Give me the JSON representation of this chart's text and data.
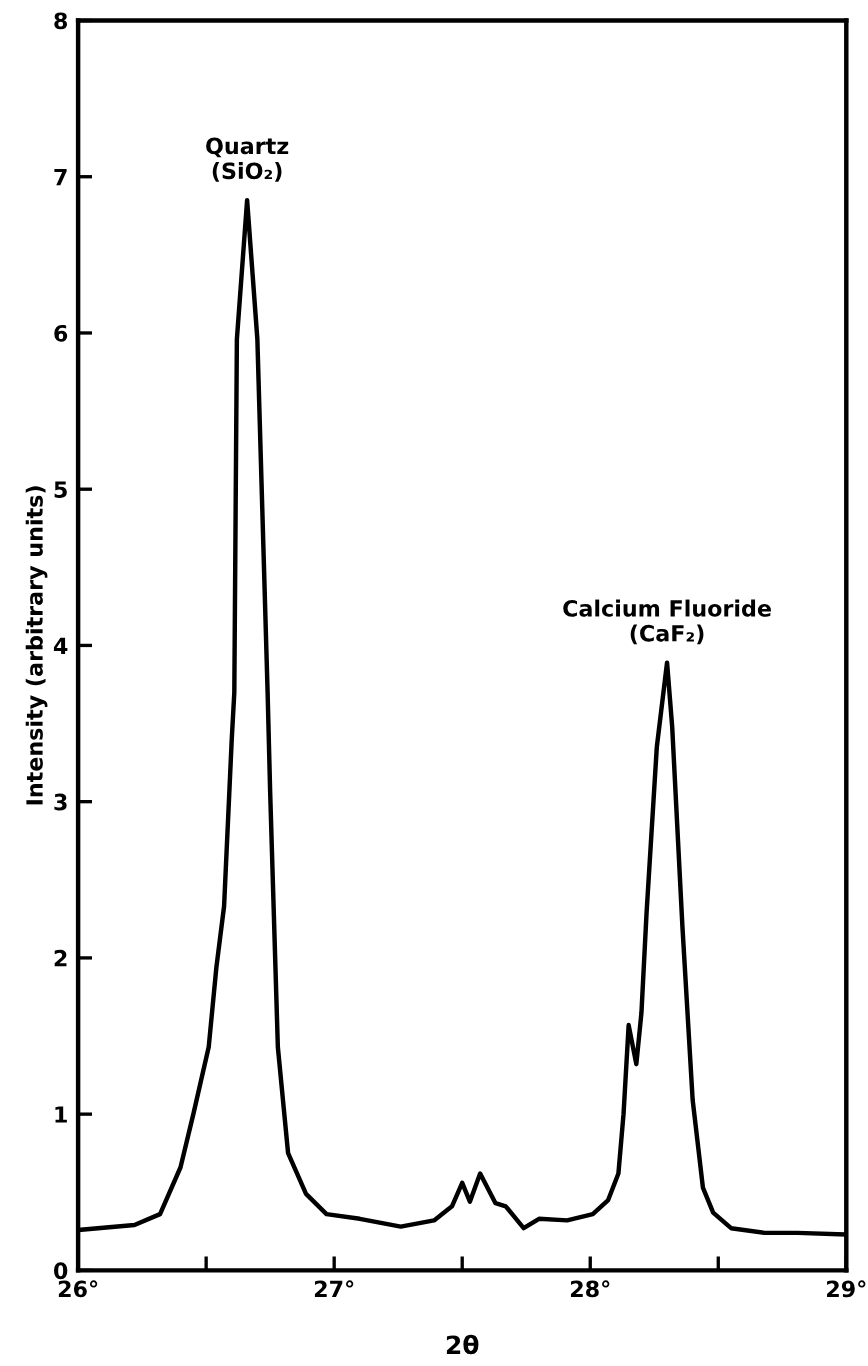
{
  "chart_data": {
    "type": "line",
    "xlabel": "2θ",
    "ylabel": "Intensity (arbitrary units)",
    "annotations": [
      {
        "text": "Quartz\n(SiO₂)",
        "x": 26.66,
        "y": 6.85
      },
      {
        "text": "Calcium Fluoride\n(CaF₂)",
        "x": 28.3,
        "y": 3.89
      }
    ],
    "series": [
      {
        "color": "#000000",
        "x": [
          26.01,
          26.22,
          26.32,
          26.4,
          26.45,
          26.51,
          26.54,
          26.57,
          26.6,
          26.61,
          26.62,
          26.66,
          26.7,
          26.74,
          26.75,
          26.78,
          26.82,
          26.89,
          26.97,
          27.1,
          27.26,
          27.39,
          27.46,
          27.5,
          27.53,
          27.57,
          27.63,
          27.67,
          27.74,
          27.8,
          27.91,
          28.01,
          28.07,
          28.11,
          28.13,
          28.15,
          28.18,
          28.2,
          28.22,
          28.26,
          28.3,
          28.32,
          28.36,
          28.4,
          28.44,
          28.48,
          28.55,
          28.68,
          28.81,
          28.99
        ],
        "values": [
          0.26,
          0.29,
          0.36,
          0.66,
          1.0,
          1.43,
          1.94,
          2.33,
          3.4,
          3.7,
          5.96,
          6.85,
          5.96,
          3.7,
          3.06,
          1.43,
          0.75,
          0.49,
          0.36,
          0.33,
          0.28,
          0.32,
          0.41,
          0.56,
          0.44,
          0.62,
          0.43,
          0.41,
          0.27,
          0.33,
          0.32,
          0.36,
          0.45,
          0.62,
          1.0,
          1.57,
          1.32,
          1.65,
          2.29,
          3.35,
          3.89,
          3.48,
          2.2,
          1.09,
          0.53,
          0.37,
          0.27,
          0.24,
          0.24,
          0.23
        ]
      }
    ],
    "xlim": [
      26,
      29
    ],
    "ylim": [
      0,
      8
    ],
    "xticks": [
      {
        "value": 26,
        "label": "26°"
      },
      {
        "value": 26.5,
        "label": null
      },
      {
        "value": 27,
        "label": "27°"
      },
      {
        "value": 27.5,
        "label": null
      },
      {
        "value": 28,
        "label": "28°"
      },
      {
        "value": 28.5,
        "label": null
      },
      {
        "value": 29,
        "label": "29°"
      }
    ],
    "yticks": [
      0,
      1,
      2,
      3,
      4,
      5,
      6,
      7,
      8
    ],
    "grid": false,
    "legend": false,
    "marker": "none",
    "line_style": "solid"
  }
}
